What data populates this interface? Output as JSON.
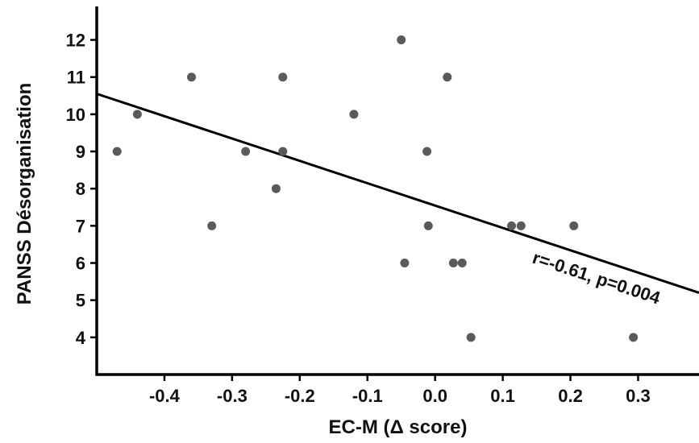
{
  "chart_data": {
    "type": "scatter",
    "title": "",
    "xlabel": "EC-M (Δ score)",
    "ylabel": "PANSS Désorganisation",
    "xlim": [
      -0.5,
      0.39
    ],
    "ylim": [
      3.0,
      12.9
    ],
    "x_ticks": [
      -0.4,
      -0.3,
      -0.2,
      -0.1,
      0.0,
      0.1,
      0.2,
      0.3
    ],
    "x_tick_labels": [
      "-0.4",
      "-0.3",
      "-0.2",
      "-0.1",
      "0.0",
      "0.1",
      "0.2",
      "0.3"
    ],
    "y_ticks": [
      4,
      5,
      6,
      7,
      8,
      9,
      10,
      11,
      12
    ],
    "y_tick_labels": [
      "4",
      "5",
      "6",
      "7",
      "8",
      "9",
      "10",
      "11",
      "12"
    ],
    "grid": false,
    "legend": "none",
    "point_color": "#5a5a5a",
    "line_color": "#000000",
    "points": [
      {
        "x": -0.47,
        "y": 9
      },
      {
        "x": -0.44,
        "y": 10
      },
      {
        "x": -0.36,
        "y": 11
      },
      {
        "x": -0.33,
        "y": 7
      },
      {
        "x": -0.28,
        "y": 9
      },
      {
        "x": -0.235,
        "y": 8
      },
      {
        "x": -0.225,
        "y": 11
      },
      {
        "x": -0.225,
        "y": 9
      },
      {
        "x": -0.12,
        "y": 10
      },
      {
        "x": -0.05,
        "y": 12
      },
      {
        "x": -0.045,
        "y": 6
      },
      {
        "x": -0.012,
        "y": 9
      },
      {
        "x": -0.01,
        "y": 7
      },
      {
        "x": 0.018,
        "y": 11
      },
      {
        "x": 0.027,
        "y": 6
      },
      {
        "x": 0.04,
        "y": 6
      },
      {
        "x": 0.053,
        "y": 4
      },
      {
        "x": 0.113,
        "y": 7
      },
      {
        "x": 0.127,
        "y": 7
      },
      {
        "x": 0.205,
        "y": 7
      },
      {
        "x": 0.293,
        "y": 4
      }
    ],
    "regression_line": {
      "x": [
        -0.5,
        0.39
      ],
      "y": [
        10.55,
        5.2
      ]
    },
    "annotation": "r=-0.61, p=0.004"
  }
}
